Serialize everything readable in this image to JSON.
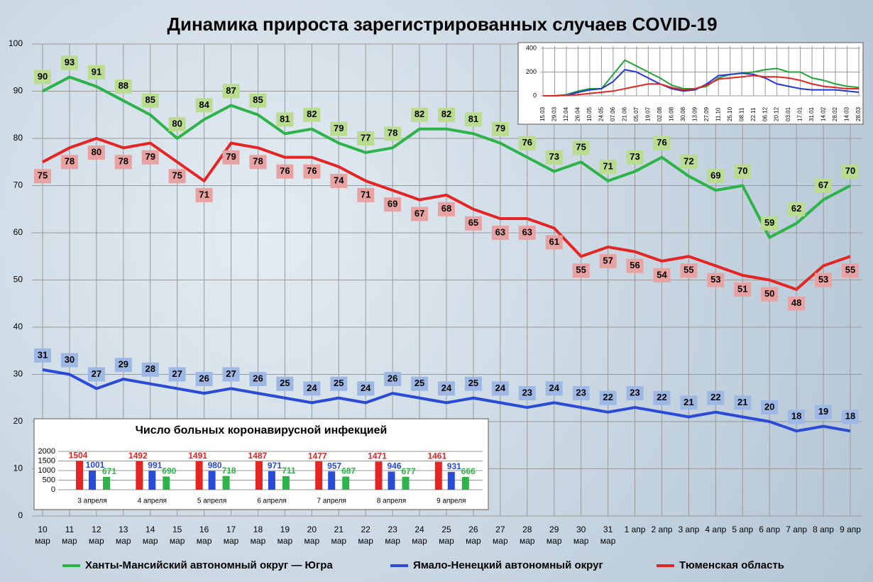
{
  "chart_data": [
    {
      "type": "line",
      "title": "Динамика прироста зарегистрированных случаев COVID-19",
      "categories": [
        "10 мар",
        "11 мар",
        "12 мар",
        "13 мар",
        "14 мар",
        "15 мар",
        "16 мар",
        "17 мар",
        "18 мар",
        "19 мар",
        "20 мар",
        "21 мар",
        "22 мар",
        "23 мар",
        "24 мар",
        "25 мар",
        "26 мар",
        "27 мар",
        "28 мар",
        "29 мар",
        "30 мар",
        "31 мар",
        "1 апр",
        "2 апр",
        "3 апр",
        "4 апр",
        "5 апр",
        "6 апр",
        "7 апр",
        "8 апр",
        "9 апр"
      ],
      "series": [
        {
          "name": "Ханты-Мансийский автономный округ — Югра",
          "color": "#2db34a",
          "values": [
            90,
            93,
            91,
            88,
            85,
            80,
            84,
            87,
            85,
            81,
            82,
            79,
            77,
            78,
            82,
            82,
            81,
            79,
            76,
            73,
            75,
            71,
            73,
            76,
            72,
            69,
            70,
            59,
            62,
            67,
            70
          ]
        },
        {
          "name": "Ямало-Ненецкий автономный округ",
          "color": "#2a4bd7",
          "values": [
            31,
            30,
            27,
            29,
            28,
            27,
            26,
            27,
            26,
            25,
            24,
            25,
            24,
            26,
            25,
            24,
            25,
            24,
            23,
            24,
            23,
            22,
            23,
            22,
            21,
            22,
            21,
            20,
            18,
            19,
            18
          ]
        },
        {
          "name": "Тюменская область",
          "color": "#e52424",
          "values": [
            75,
            78,
            80,
            78,
            79,
            75,
            71,
            79,
            78,
            76,
            76,
            74,
            71,
            69,
            67,
            68,
            65,
            63,
            63,
            61,
            55,
            57,
            56,
            54,
            55,
            53,
            51,
            50,
            48,
            53,
            55
          ]
        }
      ],
      "ylim": [
        0,
        100
      ],
      "yticks": [
        0,
        10,
        20,
        30,
        40,
        50,
        60,
        70,
        80,
        90,
        100
      ],
      "grid": true
    },
    {
      "type": "line",
      "categories": [
        "15.03",
        "29.03",
        "12.04",
        "26.04",
        "10.05",
        "24.05",
        "07.06",
        "21.06",
        "05.07",
        "19.07",
        "02.08",
        "16.08",
        "30.08",
        "13.09",
        "27.09",
        "11.10",
        "25.10",
        "08.11",
        "22.11",
        "06.12",
        "20.12",
        "03.01",
        "17.01",
        "31.01",
        "14.02",
        "28.02",
        "14.03",
        "28.03"
      ],
      "series": [
        {
          "color": "#1fa33a",
          "values": [
            0,
            0,
            10,
            40,
            60,
            60,
            180,
            300,
            250,
            200,
            150,
            90,
            60,
            60,
            80,
            150,
            180,
            190,
            200,
            220,
            230,
            200,
            200,
            150,
            130,
            100,
            80,
            70
          ]
        },
        {
          "color": "#2236d6",
          "values": [
            0,
            0,
            5,
            30,
            50,
            60,
            120,
            220,
            200,
            150,
            100,
            60,
            40,
            50,
            100,
            170,
            180,
            190,
            180,
            150,
            100,
            80,
            60,
            50,
            50,
            50,
            40,
            30
          ]
        },
        {
          "color": "#e52424",
          "values": [
            0,
            0,
            5,
            10,
            20,
            30,
            40,
            60,
            80,
            100,
            100,
            70,
            50,
            60,
            90,
            140,
            150,
            160,
            170,
            160,
            160,
            150,
            130,
            100,
            80,
            70,
            60,
            60
          ]
        }
      ],
      "ylim": [
        0,
        400
      ],
      "yticks": [
        0,
        200,
        400
      ],
      "grid": true
    },
    {
      "type": "bar",
      "title": "Число больных  коронавирусной  инфекцией",
      "categories": [
        "3 апреля",
        "4 апреля",
        "5 апреля",
        "6 апреля",
        "7 апреля",
        "8 апреля",
        "9 апреля"
      ],
      "series": [
        {
          "color": "#e52424",
          "values": [
            1504,
            1492,
            1491,
            1487,
            1477,
            1471,
            1461
          ]
        },
        {
          "color": "#2a4bd7",
          "values": [
            1001,
            991,
            980,
            971,
            957,
            946,
            931
          ]
        },
        {
          "color": "#2db34a",
          "values": [
            671,
            690,
            718,
            711,
            687,
            677,
            666
          ]
        }
      ],
      "ylim": [
        0,
        2000
      ],
      "yticks": [
        0,
        500,
        1000,
        1500,
        2000
      ],
      "grid": true
    }
  ]
}
